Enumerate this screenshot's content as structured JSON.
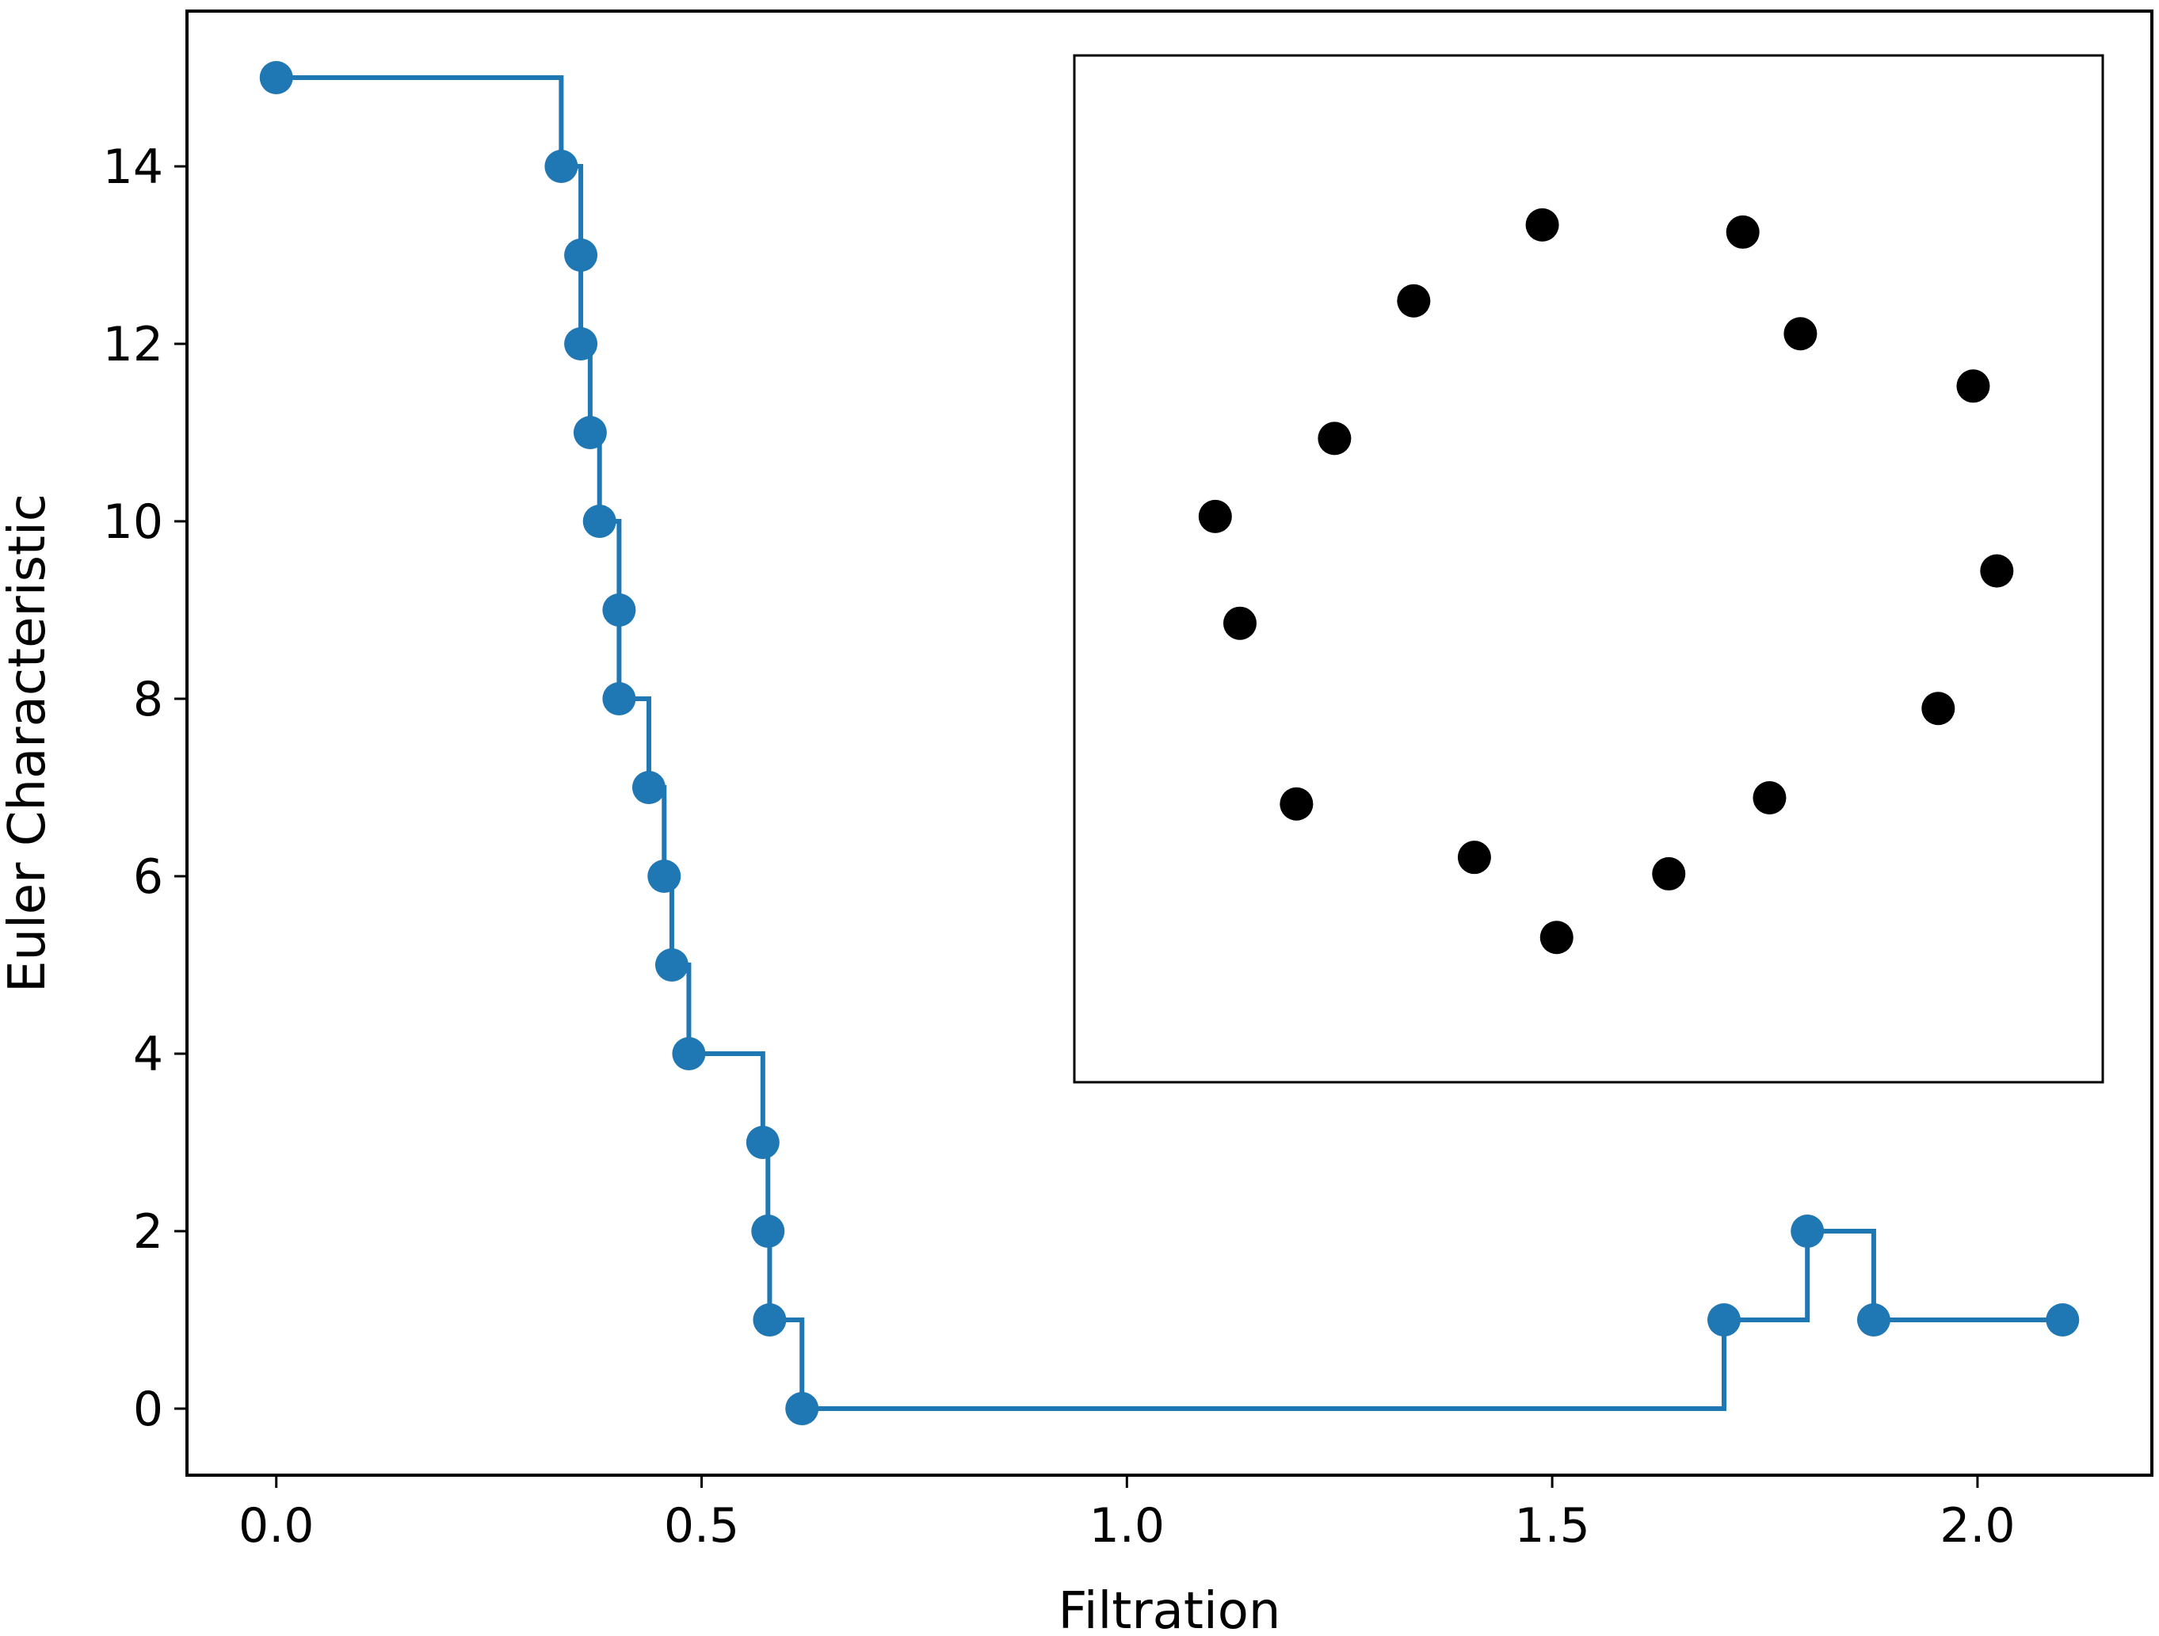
{
  "chart_data": [
    {
      "type": "line",
      "step": "post",
      "xlabel": "Filtration",
      "ylabel": "Euler Characteristic",
      "xlim": [
        -0.105,
        2.205
      ],
      "ylim": [
        -0.75,
        15.75
      ],
      "x_ticks": [
        0.0,
        0.5,
        1.0,
        1.5,
        2.0
      ],
      "x_tick_labels": [
        "0.0",
        "0.5",
        "1.0",
        "1.5",
        "2.0"
      ],
      "y_ticks": [
        0,
        2,
        4,
        6,
        8,
        10,
        12,
        14
      ],
      "y_tick_labels": [
        "0",
        "2",
        "4",
        "6",
        "8",
        "10",
        "12",
        "14"
      ],
      "grid": false,
      "color": "#1f77b4",
      "series": [
        {
          "x": [
            0.0,
            0.335,
            0.358,
            0.358,
            0.369,
            0.38,
            0.403,
            0.403,
            0.438,
            0.456,
            0.465,
            0.485,
            0.572,
            0.578,
            0.58,
            0.618,
            1.702,
            1.8,
            1.878,
            2.1
          ],
          "y": [
            15,
            14,
            13,
            12,
            11,
            10,
            9,
            8,
            7,
            6,
            5,
            4,
            3,
            2,
            1,
            0,
            1,
            2,
            1,
            1
          ]
        }
      ]
    },
    {
      "type": "scatter",
      "inset": true,
      "color": "#000000",
      "xlim": [
        0,
        1
      ],
      "ylim": [
        0,
        1
      ],
      "points": [
        {
          "x": 0.455,
          "y": 0.835
        },
        {
          "x": 0.65,
          "y": 0.828
        },
        {
          "x": 0.33,
          "y": 0.761
        },
        {
          "x": 0.706,
          "y": 0.729
        },
        {
          "x": 0.874,
          "y": 0.678
        },
        {
          "x": 0.253,
          "y": 0.627
        },
        {
          "x": 0.137,
          "y": 0.551
        },
        {
          "x": 0.897,
          "y": 0.498
        },
        {
          "x": 0.161,
          "y": 0.447
        },
        {
          "x": 0.84,
          "y": 0.364
        },
        {
          "x": 0.216,
          "y": 0.271
        },
        {
          "x": 0.676,
          "y": 0.277
        },
        {
          "x": 0.389,
          "y": 0.219
        },
        {
          "x": 0.578,
          "y": 0.203
        },
        {
          "x": 0.469,
          "y": 0.141
        }
      ]
    }
  ]
}
